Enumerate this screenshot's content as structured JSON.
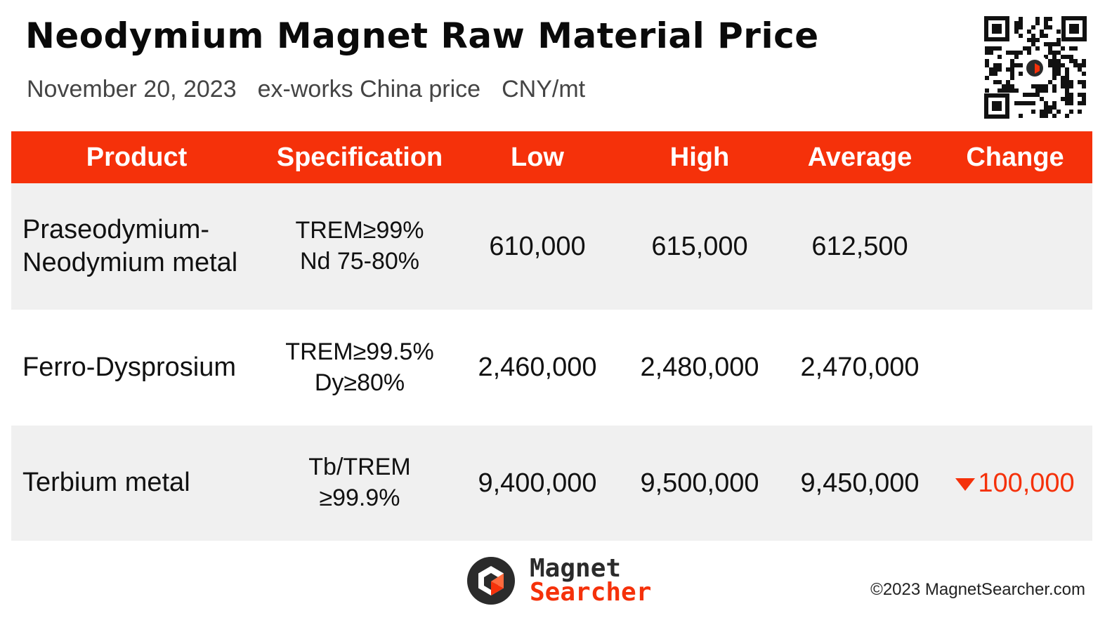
{
  "title": "Neodymium Magnet Raw Material Price",
  "subtitle": {
    "date": "November 20, 2023",
    "basis": "ex-works China price",
    "unit": "CNY/mt"
  },
  "qr_code": {
    "icon": "qr-code-icon"
  },
  "table": {
    "headers": {
      "product": "Product",
      "specification": "Specification",
      "low": "Low",
      "high": "High",
      "average": "Average",
      "change": "Change"
    },
    "rows": [
      {
        "product_line1": "Praseodymium-",
        "product_line2": "Neodymium metal",
        "spec_line1": "TREM≥99%",
        "spec_line2": "Nd 75-80%",
        "low": "610,000",
        "high": "615,000",
        "average": "612,500",
        "change": ""
      },
      {
        "product_line1": "Ferro-Dysprosium",
        "product_line2": "",
        "spec_line1": "TREM≥99.5%",
        "spec_line2": "Dy≥80%",
        "low": "2,460,000",
        "high": "2,480,000",
        "average": "2,470,000",
        "change": ""
      },
      {
        "product_line1": "Terbium metal",
        "product_line2": "",
        "spec_line1": "Tb/TREM",
        "spec_line2": "≥99.9%",
        "low": "9,400,000",
        "high": "9,500,000",
        "average": "9,450,000",
        "change": "100,000",
        "change_direction": "down",
        "change_icon": "triangle-down-icon"
      }
    ]
  },
  "colors": {
    "accent": "#f5310a",
    "row_shade": "#f0f0f0",
    "logo_dark": "#2b2b2b"
  },
  "footer": {
    "logo_line1": "Magnet",
    "logo_line2": "Searcher",
    "copyright": "©2023 MagnetSearcher.com"
  }
}
